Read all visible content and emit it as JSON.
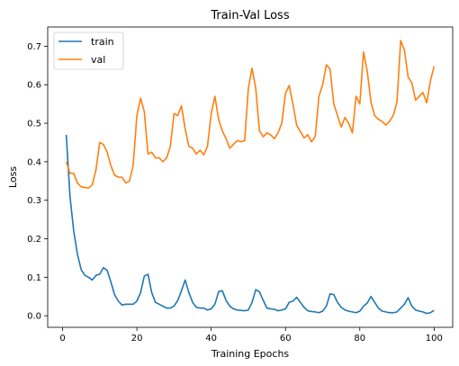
{
  "chart_data": {
    "type": "line",
    "title": "Train-Val Loss",
    "xlabel": "Training Epochs",
    "ylabel": "Loss",
    "xlim": [
      -4,
      105
    ],
    "ylim": [
      -0.03,
      0.75
    ],
    "xticks": [
      0,
      20,
      40,
      60,
      80,
      100
    ],
    "yticks": [
      0.0,
      0.1,
      0.2,
      0.3,
      0.4,
      0.5,
      0.6,
      0.7
    ],
    "ytick_labels": [
      "0.0",
      "0.1",
      "0.2",
      "0.3",
      "0.4",
      "0.5",
      "0.6",
      "0.7"
    ],
    "grid": false,
    "legend_position": "upper-left",
    "series": [
      {
        "name": "train",
        "color": "#1f77b4",
        "points": [
          [
            1,
            0.47
          ],
          [
            2,
            0.31
          ],
          [
            3,
            0.22
          ],
          [
            4,
            0.16
          ],
          [
            5,
            0.12
          ],
          [
            6,
            0.105
          ],
          [
            7,
            0.1
          ],
          [
            8,
            0.093
          ],
          [
            9,
            0.105
          ],
          [
            10,
            0.108
          ],
          [
            11,
            0.125
          ],
          [
            12,
            0.118
          ],
          [
            13,
            0.088
          ],
          [
            14,
            0.055
          ],
          [
            15,
            0.038
          ],
          [
            16,
            0.028
          ],
          [
            17,
            0.03
          ],
          [
            18,
            0.03
          ],
          [
            19,
            0.03
          ],
          [
            20,
            0.038
          ],
          [
            21,
            0.06
          ],
          [
            22,
            0.103
          ],
          [
            23,
            0.108
          ],
          [
            24,
            0.06
          ],
          [
            25,
            0.035
          ],
          [
            26,
            0.03
          ],
          [
            27,
            0.025
          ],
          [
            28,
            0.02
          ],
          [
            29,
            0.02
          ],
          [
            30,
            0.025
          ],
          [
            31,
            0.04
          ],
          [
            32,
            0.065
          ],
          [
            33,
            0.093
          ],
          [
            34,
            0.06
          ],
          [
            35,
            0.035
          ],
          [
            36,
            0.022
          ],
          [
            37,
            0.02
          ],
          [
            38,
            0.02
          ],
          [
            39,
            0.015
          ],
          [
            40,
            0.018
          ],
          [
            41,
            0.03
          ],
          [
            42,
            0.063
          ],
          [
            43,
            0.065
          ],
          [
            44,
            0.04
          ],
          [
            45,
            0.025
          ],
          [
            46,
            0.018
          ],
          [
            47,
            0.015
          ],
          [
            48,
            0.014
          ],
          [
            49,
            0.013
          ],
          [
            50,
            0.015
          ],
          [
            51,
            0.035
          ],
          [
            52,
            0.068
          ],
          [
            53,
            0.062
          ],
          [
            54,
            0.04
          ],
          [
            55,
            0.02
          ],
          [
            56,
            0.018
          ],
          [
            57,
            0.017
          ],
          [
            58,
            0.013
          ],
          [
            59,
            0.015
          ],
          [
            60,
            0.018
          ],
          [
            61,
            0.035
          ],
          [
            62,
            0.038
          ],
          [
            63,
            0.048
          ],
          [
            64,
            0.035
          ],
          [
            65,
            0.022
          ],
          [
            66,
            0.013
          ],
          [
            67,
            0.011
          ],
          [
            68,
            0.01
          ],
          [
            69,
            0.008
          ],
          [
            70,
            0.012
          ],
          [
            71,
            0.025
          ],
          [
            72,
            0.057
          ],
          [
            73,
            0.055
          ],
          [
            74,
            0.035
          ],
          [
            75,
            0.022
          ],
          [
            76,
            0.015
          ],
          [
            77,
            0.012
          ],
          [
            78,
            0.01
          ],
          [
            79,
            0.008
          ],
          [
            80,
            0.012
          ],
          [
            81,
            0.025
          ],
          [
            82,
            0.033
          ],
          [
            83,
            0.05
          ],
          [
            84,
            0.035
          ],
          [
            85,
            0.02
          ],
          [
            86,
            0.012
          ],
          [
            87,
            0.01
          ],
          [
            88,
            0.008
          ],
          [
            89,
            0.008
          ],
          [
            90,
            0.01
          ],
          [
            91,
            0.02
          ],
          [
            92,
            0.03
          ],
          [
            93,
            0.047
          ],
          [
            94,
            0.025
          ],
          [
            95,
            0.015
          ],
          [
            96,
            0.012
          ],
          [
            97,
            0.01
          ],
          [
            98,
            0.006
          ],
          [
            99,
            0.008
          ],
          [
            100,
            0.014
          ]
        ]
      },
      {
        "name": "val",
        "color": "#ff7f0e",
        "points": [
          [
            1,
            0.4
          ],
          [
            2,
            0.37
          ],
          [
            3,
            0.37
          ],
          [
            4,
            0.345
          ],
          [
            5,
            0.335
          ],
          [
            6,
            0.333
          ],
          [
            7,
            0.332
          ],
          [
            8,
            0.34
          ],
          [
            9,
            0.38
          ],
          [
            10,
            0.45
          ],
          [
            11,
            0.445
          ],
          [
            12,
            0.425
          ],
          [
            13,
            0.39
          ],
          [
            14,
            0.365
          ],
          [
            15,
            0.36
          ],
          [
            16,
            0.36
          ],
          [
            17,
            0.345
          ],
          [
            18,
            0.35
          ],
          [
            19,
            0.39
          ],
          [
            20,
            0.52
          ],
          [
            21,
            0.565
          ],
          [
            22,
            0.53
          ],
          [
            23,
            0.42
          ],
          [
            24,
            0.425
          ],
          [
            25,
            0.41
          ],
          [
            26,
            0.41
          ],
          [
            27,
            0.4
          ],
          [
            28,
            0.41
          ],
          [
            29,
            0.44
          ],
          [
            30,
            0.525
          ],
          [
            31,
            0.52
          ],
          [
            32,
            0.545
          ],
          [
            33,
            0.485
          ],
          [
            34,
            0.44
          ],
          [
            35,
            0.435
          ],
          [
            36,
            0.42
          ],
          [
            37,
            0.43
          ],
          [
            38,
            0.418
          ],
          [
            39,
            0.44
          ],
          [
            40,
            0.525
          ],
          [
            41,
            0.57
          ],
          [
            42,
            0.51
          ],
          [
            43,
            0.48
          ],
          [
            44,
            0.46
          ],
          [
            45,
            0.435
          ],
          [
            46,
            0.445
          ],
          [
            47,
            0.455
          ],
          [
            48,
            0.452
          ],
          [
            49,
            0.455
          ],
          [
            50,
            0.59
          ],
          [
            51,
            0.643
          ],
          [
            52,
            0.59
          ],
          [
            53,
            0.48
          ],
          [
            54,
            0.465
          ],
          [
            55,
            0.475
          ],
          [
            56,
            0.47
          ],
          [
            57,
            0.46
          ],
          [
            58,
            0.475
          ],
          [
            59,
            0.5
          ],
          [
            60,
            0.578
          ],
          [
            61,
            0.598
          ],
          [
            62,
            0.55
          ],
          [
            63,
            0.495
          ],
          [
            64,
            0.478
          ],
          [
            65,
            0.462
          ],
          [
            66,
            0.47
          ],
          [
            67,
            0.452
          ],
          [
            68,
            0.465
          ],
          [
            69,
            0.57
          ],
          [
            70,
            0.6
          ],
          [
            71,
            0.652
          ],
          [
            72,
            0.64
          ],
          [
            73,
            0.55
          ],
          [
            74,
            0.52
          ],
          [
            75,
            0.49
          ],
          [
            76,
            0.515
          ],
          [
            77,
            0.5
          ],
          [
            78,
            0.475
          ],
          [
            79,
            0.57
          ],
          [
            80,
            0.55
          ],
          [
            81,
            0.685
          ],
          [
            82,
            0.635
          ],
          [
            83,
            0.555
          ],
          [
            84,
            0.52
          ],
          [
            85,
            0.51
          ],
          [
            86,
            0.505
          ],
          [
            87,
            0.495
          ],
          [
            88,
            0.505
          ],
          [
            89,
            0.52
          ],
          [
            90,
            0.555
          ],
          [
            91,
            0.715
          ],
          [
            92,
            0.69
          ],
          [
            93,
            0.62
          ],
          [
            94,
            0.605
          ],
          [
            95,
            0.56
          ],
          [
            96,
            0.57
          ],
          [
            97,
            0.58
          ],
          [
            98,
            0.553
          ],
          [
            99,
            0.61
          ],
          [
            100,
            0.648
          ]
        ]
      }
    ]
  }
}
